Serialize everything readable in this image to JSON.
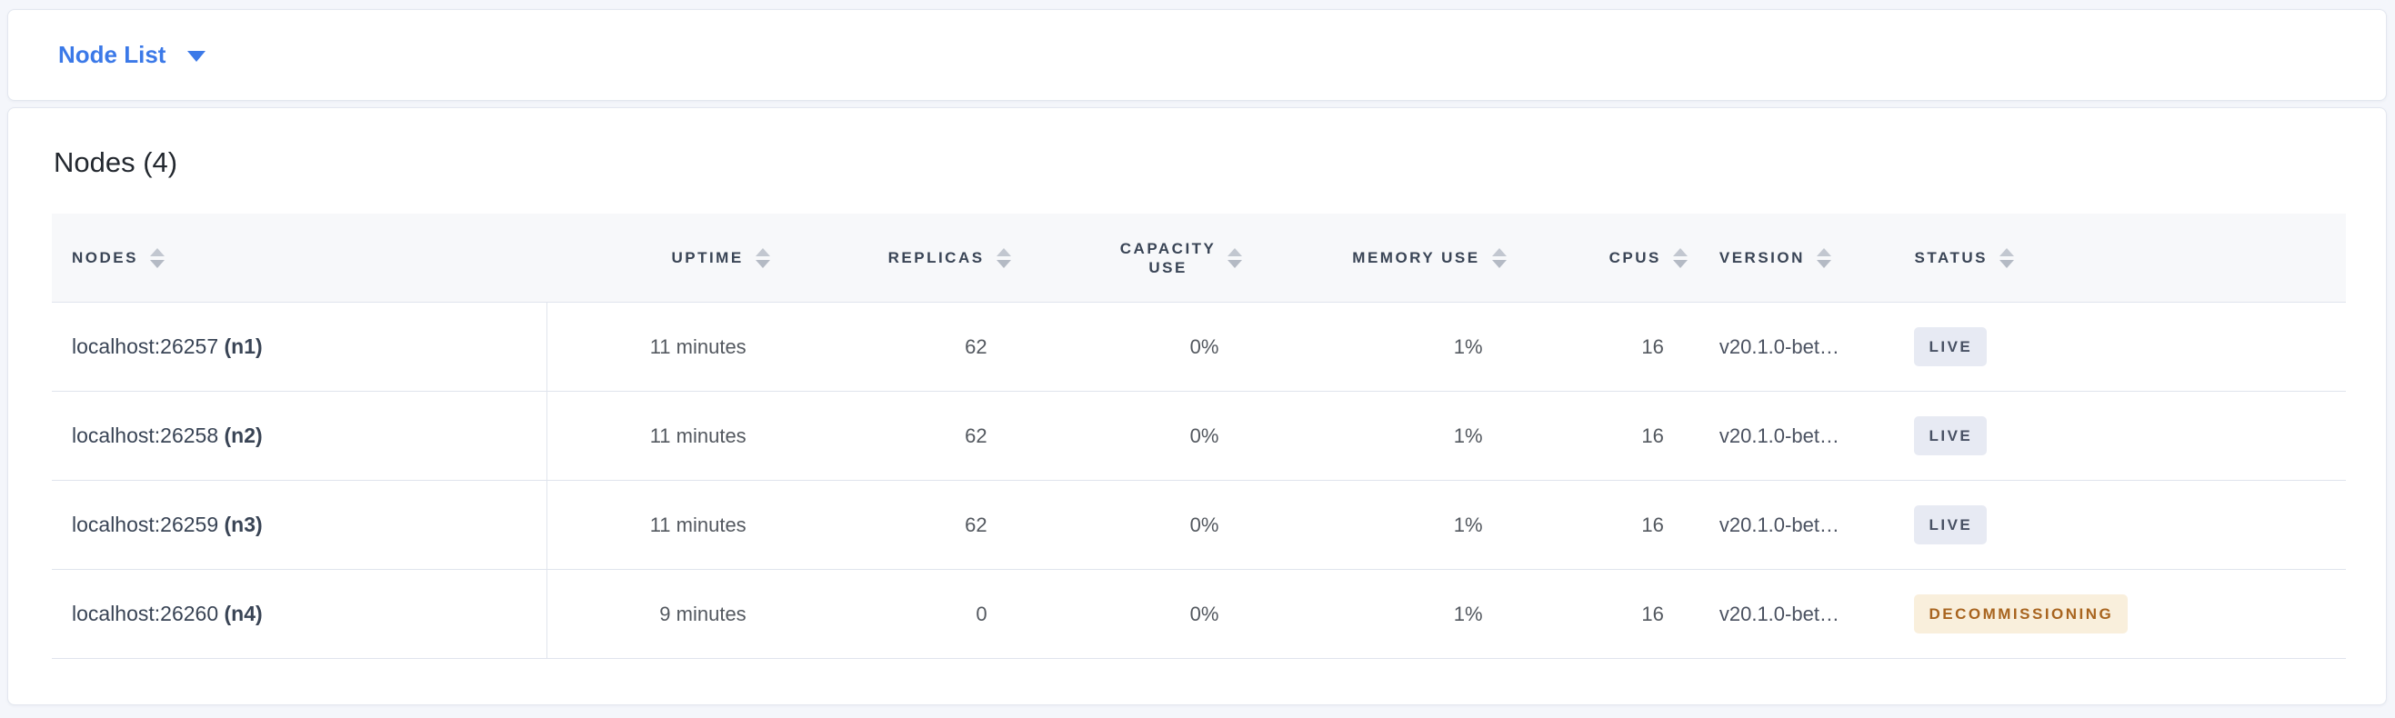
{
  "view_selector": {
    "label": "Node List",
    "caret_icon": "caret-down-icon",
    "accent_color": "#3b79e8"
  },
  "summary": {
    "title": "Nodes (4)"
  },
  "table": {
    "sort_icon": "sort-arrows-icon",
    "columns": [
      {
        "key": "nodes",
        "label": "NODES",
        "align": "left"
      },
      {
        "key": "uptime",
        "label": "UPTIME",
        "align": "right"
      },
      {
        "key": "replicas",
        "label": "REPLICAS",
        "align": "right"
      },
      {
        "key": "capacity_use",
        "label": "CAPACITY USE",
        "lines": [
          "CAPACITY",
          "USE"
        ],
        "align": "right"
      },
      {
        "key": "memory_use",
        "label": "MEMORY USE",
        "align": "right"
      },
      {
        "key": "cpus",
        "label": "CPUS",
        "align": "right"
      },
      {
        "key": "version",
        "label": "VERSION",
        "align": "left"
      },
      {
        "key": "status",
        "label": "STATUS",
        "align": "left"
      }
    ],
    "rows": [
      {
        "address": "localhost:26257",
        "node_id": "(n1)",
        "uptime": "11 minutes",
        "replicas": "62",
        "capacity_use": "0%",
        "memory_use": "1%",
        "cpus": "16",
        "version": "v20.1.0-bet…",
        "status": "LIVE",
        "status_type": "live"
      },
      {
        "address": "localhost:26258",
        "node_id": "(n2)",
        "uptime": "11 minutes",
        "replicas": "62",
        "capacity_use": "0%",
        "memory_use": "1%",
        "cpus": "16",
        "version": "v20.1.0-bet…",
        "status": "LIVE",
        "status_type": "live"
      },
      {
        "address": "localhost:26259",
        "node_id": "(n3)",
        "uptime": "11 minutes",
        "replicas": "62",
        "capacity_use": "0%",
        "memory_use": "1%",
        "cpus": "16",
        "version": "v20.1.0-bet…",
        "status": "LIVE",
        "status_type": "live"
      },
      {
        "address": "localhost:26260",
        "node_id": "(n4)",
        "uptime": "9 minutes",
        "replicas": "0",
        "capacity_use": "0%",
        "memory_use": "1%",
        "cpus": "16",
        "version": "v20.1.0-bet…",
        "status": "DECOMMISSIONING",
        "status_type": "decommissioning"
      }
    ],
    "status_colors": {
      "live": {
        "bg": "#e7eaf3",
        "text": "#475063"
      },
      "decommissioning": {
        "bg": "#f9efdc",
        "text": "#a8641f"
      }
    }
  }
}
